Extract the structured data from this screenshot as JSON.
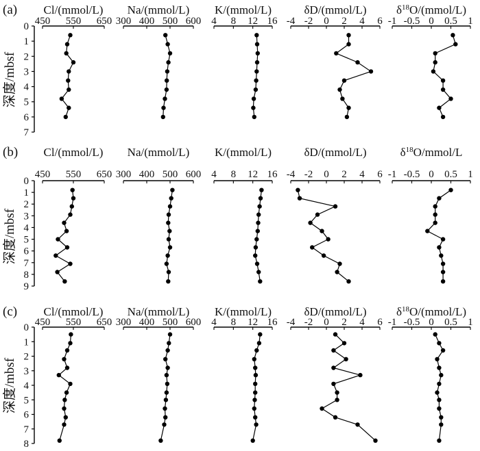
{
  "figure": {
    "panels": [
      {
        "label": "(a)",
        "ylabel": "深度/mbsf",
        "y_ticks": [
          "0",
          "1",
          "2",
          "3",
          "4",
          "5",
          "6",
          "7"
        ],
        "subplots": [
          {
            "title": "Cl/(mmol/L)",
            "ticks": [
              "450",
              "550",
              "650"
            ]
          },
          {
            "title": "Na/(mmol/L)",
            "ticks": [
              "300",
              "400",
              "500",
              "600"
            ]
          },
          {
            "title": "K/(mmol/L)",
            "ticks": [
              "4",
              "8",
              "12",
              "16"
            ]
          },
          {
            "title": "δD/(mmol/L)",
            "ticks": [
              "-4",
              "-2",
              "0",
              "2",
              "4",
              "6"
            ]
          },
          {
            "title": "δ18O/(mmol/L)",
            "ticks": [
              "-1",
              "-0.5",
              "0",
              "0.5",
              "1"
            ]
          }
        ]
      },
      {
        "label": "(b)",
        "ylabel": "深度/mbsf",
        "y_ticks": [
          "0",
          "1",
          "2",
          "3",
          "4",
          "5",
          "6",
          "7",
          "8",
          "9"
        ],
        "subplots": [
          {
            "title": "Cl/(mmol/L)",
            "ticks": [
              "450",
              "550",
              "650"
            ]
          },
          {
            "title": "Na/(mmol/L)",
            "ticks": [
              "300",
              "400",
              "500",
              "600"
            ]
          },
          {
            "title": "K/(mmol/L)",
            "ticks": [
              "4",
              "8",
              "12",
              "16"
            ]
          },
          {
            "title": "δD/(mmol/L)",
            "ticks": [
              "-4",
              "-2",
              "0",
              "2",
              "4",
              "6"
            ]
          },
          {
            "title": "δ18O/mmol/L",
            "ticks": [
              "-1",
              "-0.5",
              "0",
              "0.5",
              "1"
            ]
          }
        ]
      },
      {
        "label": "(c)",
        "ylabel": "深度/mbsf",
        "y_ticks": [
          "0",
          "1",
          "2",
          "3",
          "4",
          "5",
          "6",
          "7",
          "8"
        ],
        "subplots": [
          {
            "title": "Cl/(mmol/L)",
            "ticks": [
              "450",
              "550",
              "650"
            ]
          },
          {
            "title": "Na/(mmol/L)",
            "ticks": [
              "300",
              "400",
              "500",
              "600"
            ]
          },
          {
            "title": "K/(mmol/L)",
            "ticks": [
              "4",
              "8",
              "12",
              "16"
            ]
          },
          {
            "title": "δD/(mmol/L)",
            "ticks": [
              "-4",
              "-2",
              "0",
              "2",
              "4",
              "6"
            ]
          },
          {
            "title": "δ18O/(mmol/L)",
            "ticks": [
              "-1",
              "-0.5",
              "0",
              "0.5",
              "1"
            ]
          }
        ]
      }
    ]
  },
  "chart_data": [
    {
      "type": "line",
      "panel": "(a)",
      "ylabel": "深度/mbsf",
      "ylim": [
        0,
        7
      ],
      "y_inverted": true,
      "subplots": [
        {
          "title": "Cl/(mmol/L)",
          "xlim": [
            450,
            650
          ],
          "x": [
            540,
            530,
            527,
            550,
            535,
            533,
            535,
            512,
            535,
            525
          ],
          "y": [
            0.6,
            1.2,
            1.8,
            2.4,
            3.0,
            3.6,
            4.2,
            4.8,
            5.4,
            6.0
          ]
        },
        {
          "title": "Na/(mmol/L)",
          "xlim": [
            300,
            600
          ],
          "x": [
            480,
            490,
            500,
            493,
            488,
            486,
            485,
            478,
            472,
            470
          ],
          "y": [
            0.6,
            1.2,
            1.8,
            2.4,
            3.0,
            3.6,
            4.2,
            4.8,
            5.4,
            6.0
          ]
        },
        {
          "title": "K/(mmol/L)",
          "xlim": [
            4,
            16
          ],
          "x": [
            12.8,
            12.9,
            13.0,
            12.9,
            12.8,
            12.7,
            12.6,
            12.2,
            12.1,
            12.3
          ],
          "y": [
            0.6,
            1.2,
            1.8,
            2.4,
            3.0,
            3.6,
            4.2,
            4.8,
            5.4,
            6.0
          ]
        },
        {
          "title": "δD/(mmol/L)",
          "xlim": [
            -4,
            6
          ],
          "x": [
            2.5,
            2.5,
            1.1,
            3.5,
            5.0,
            2.0,
            1.5,
            1.8,
            2.5,
            2.3
          ],
          "y": [
            0.6,
            1.2,
            1.8,
            2.4,
            3.0,
            3.6,
            4.2,
            4.8,
            5.4,
            6.0
          ]
        },
        {
          "title": "δ18O/(mmol/L)",
          "xlim": [
            -1,
            1
          ],
          "x": [
            0.55,
            0.62,
            0.1,
            0.1,
            0.05,
            0.3,
            0.3,
            0.5,
            0.2,
            0.3
          ],
          "y": [
            0.6,
            1.2,
            1.8,
            2.4,
            3.0,
            3.6,
            4.2,
            4.8,
            5.4,
            6.0
          ]
        }
      ]
    },
    {
      "type": "line",
      "panel": "(b)",
      "ylabel": "深度/mbsf",
      "ylim": [
        0,
        9
      ],
      "y_inverted": true,
      "subplots": [
        {
          "title": "Cl/(mmol/L)",
          "xlim": [
            450,
            650
          ],
          "x": [
            547,
            550,
            545,
            540,
            520,
            528,
            500,
            530,
            493,
            540,
            498,
            522
          ],
          "y": [
            0.8,
            1.5,
            2.2,
            2.9,
            3.6,
            4.3,
            5.0,
            5.7,
            6.4,
            7.1,
            7.8,
            8.6
          ]
        },
        {
          "title": "Na/(mmol/L)",
          "xlim": [
            300,
            600
          ],
          "x": [
            510,
            505,
            500,
            494,
            492,
            498,
            494,
            500,
            490,
            485,
            494,
            492
          ],
          "y": [
            0.8,
            1.5,
            2.2,
            2.9,
            3.6,
            4.3,
            5.0,
            5.7,
            6.4,
            7.1,
            7.8,
            8.6
          ]
        },
        {
          "title": "K/(mmol/L)",
          "xlim": [
            4,
            16
          ],
          "x": [
            13.8,
            13.6,
            13.4,
            13.2,
            13.1,
            13.0,
            12.8,
            12.6,
            12.5,
            12.9,
            13.2,
            13.5
          ],
          "y": [
            0.8,
            1.5,
            2.2,
            2.9,
            3.6,
            4.3,
            5.0,
            5.7,
            6.4,
            7.1,
            7.8,
            8.6
          ]
        },
        {
          "title": "δD/(mmol/L)",
          "xlim": [
            -4,
            6
          ],
          "x": [
            -3.2,
            -3.0,
            1.0,
            -1.0,
            -1.8,
            -0.5,
            0.2,
            -1.6,
            -0.3,
            1.5,
            1.2,
            2.5
          ],
          "y": [
            0.8,
            1.5,
            2.2,
            2.9,
            3.6,
            4.3,
            5.0,
            5.7,
            6.4,
            7.1,
            7.8,
            8.6
          ]
        },
        {
          "title": "δ18O/mmol/L",
          "xlim": [
            -1,
            1
          ],
          "x": [
            0.5,
            0.2,
            0.1,
            0.1,
            0.1,
            -0.1,
            0.3,
            0.2,
            0.25,
            0.3,
            0.3,
            0.3
          ],
          "y": [
            0.8,
            1.5,
            2.2,
            2.9,
            3.6,
            4.3,
            5.0,
            5.7,
            6.4,
            7.1,
            7.8,
            8.6
          ]
        }
      ]
    },
    {
      "type": "line",
      "panel": "(c)",
      "ylabel": "深度/mbsf",
      "ylim": [
        0,
        8
      ],
      "y_inverted": true,
      "subplots": [
        {
          "title": "Cl/(mmol/L)",
          "xlim": [
            450,
            650
          ],
          "x": [
            542,
            540,
            530,
            520,
            530,
            503,
            540,
            528,
            522,
            520,
            525,
            520,
            505
          ],
          "y": [
            0.5,
            1.1,
            1.6,
            2.2,
            2.8,
            3.3,
            3.9,
            4.5,
            5.0,
            5.6,
            6.2,
            6.7,
            7.8
          ]
        },
        {
          "title": "Na/(mmol/L)",
          "xlim": [
            300,
            600
          ],
          "x": [
            500,
            495,
            490,
            480,
            490,
            485,
            488,
            485,
            482,
            478,
            480,
            475,
            460
          ],
          "y": [
            0.5,
            1.1,
            1.6,
            2.2,
            2.8,
            3.3,
            3.9,
            4.5,
            5.0,
            5.6,
            6.2,
            6.7,
            7.8
          ]
        },
        {
          "title": "K/(mmol/L)",
          "xlim": [
            4,
            16
          ],
          "x": [
            13.5,
            13.3,
            12.8,
            12.3,
            12.5,
            12.6,
            12.5,
            12.5,
            12.4,
            12.3,
            12.5,
            12.7,
            12.0
          ],
          "y": [
            0.5,
            1.1,
            1.6,
            2.2,
            2.8,
            3.3,
            3.9,
            4.5,
            5.0,
            5.6,
            6.2,
            6.7,
            7.8
          ]
        },
        {
          "title": "δD/(mmol/L)",
          "xlim": [
            -4,
            6
          ],
          "x": [
            1.0,
            2.0,
            0.8,
            2.2,
            0.8,
            3.8,
            0.8,
            1.2,
            1.2,
            -0.5,
            1.0,
            3.5,
            5.5
          ],
          "y": [
            0.5,
            1.1,
            1.6,
            2.2,
            2.8,
            3.3,
            3.9,
            4.5,
            5.0,
            5.6,
            6.2,
            6.7,
            7.8
          ]
        },
        {
          "title": "δ18O/(mmol/L)",
          "xlim": [
            -1,
            1
          ],
          "x": [
            0.1,
            0.2,
            0.3,
            0.15,
            0.2,
            0.25,
            0.2,
            0.15,
            0.2,
            0.2,
            0.25,
            0.25,
            0.2
          ],
          "y": [
            0.5,
            1.1,
            1.6,
            2.2,
            2.8,
            3.3,
            3.9,
            4.5,
            5.0,
            5.6,
            6.2,
            6.7,
            7.8
          ]
        }
      ]
    }
  ]
}
